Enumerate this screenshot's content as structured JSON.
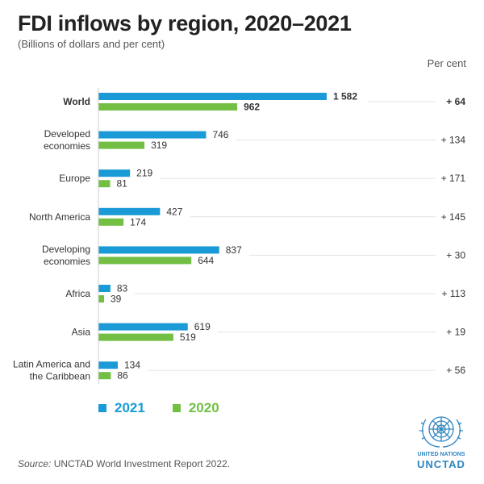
{
  "title": "FDI inflows by region, 2020–2021",
  "subtitle": "(Billions of dollars and per cent)",
  "unit_header": "Per cent",
  "colors": {
    "series_2021": "#1a9ad6",
    "series_2020": "#72bf44",
    "text": "#333333",
    "grid": "#e3e3e3"
  },
  "chart_data": {
    "type": "bar",
    "orientation": "horizontal",
    "categories": [
      {
        "label": [
          "World"
        ],
        "bold": true
      },
      {
        "label": [
          "Developed",
          "economies"
        ],
        "bold": false
      },
      {
        "label": [
          "Europe"
        ],
        "bold": false
      },
      {
        "label": [
          "North America"
        ],
        "bold": false
      },
      {
        "label": [
          "Developing",
          "economies"
        ],
        "bold": false
      },
      {
        "label": [
          "Africa"
        ],
        "bold": false
      },
      {
        "label": [
          "Asia"
        ],
        "bold": false
      },
      {
        "label": [
          "Latin America and",
          "the Caribbean"
        ],
        "bold": false
      }
    ],
    "series": [
      {
        "name": "2021",
        "values": [
          1582,
          746,
          219,
          427,
          837,
          83,
          619,
          134
        ],
        "labels": [
          "1 582",
          "746",
          "219",
          "427",
          "837",
          "83",
          "619",
          "134"
        ]
      },
      {
        "name": "2020",
        "values": [
          962,
          319,
          81,
          174,
          644,
          39,
          519,
          86
        ],
        "labels": [
          "962",
          "319",
          "81",
          "174",
          "644",
          "39",
          "519",
          "86"
        ]
      }
    ],
    "percent_change": [
      "+ 64",
      "+ 134",
      "+ 171",
      "+ 145",
      "+ 30",
      "+ 113",
      "+ 19",
      "+ 56"
    ],
    "xlim": [
      0,
      1582
    ],
    "legend": "bottom-left",
    "grid": false
  },
  "legend": {
    "items": [
      "2021",
      "2020"
    ]
  },
  "source": {
    "prefix": "Source:",
    "text": "UNCTAD World Investment Report 2022."
  },
  "logo": {
    "line1": "UNITED NATIONS",
    "line2": "UNCTAD"
  }
}
